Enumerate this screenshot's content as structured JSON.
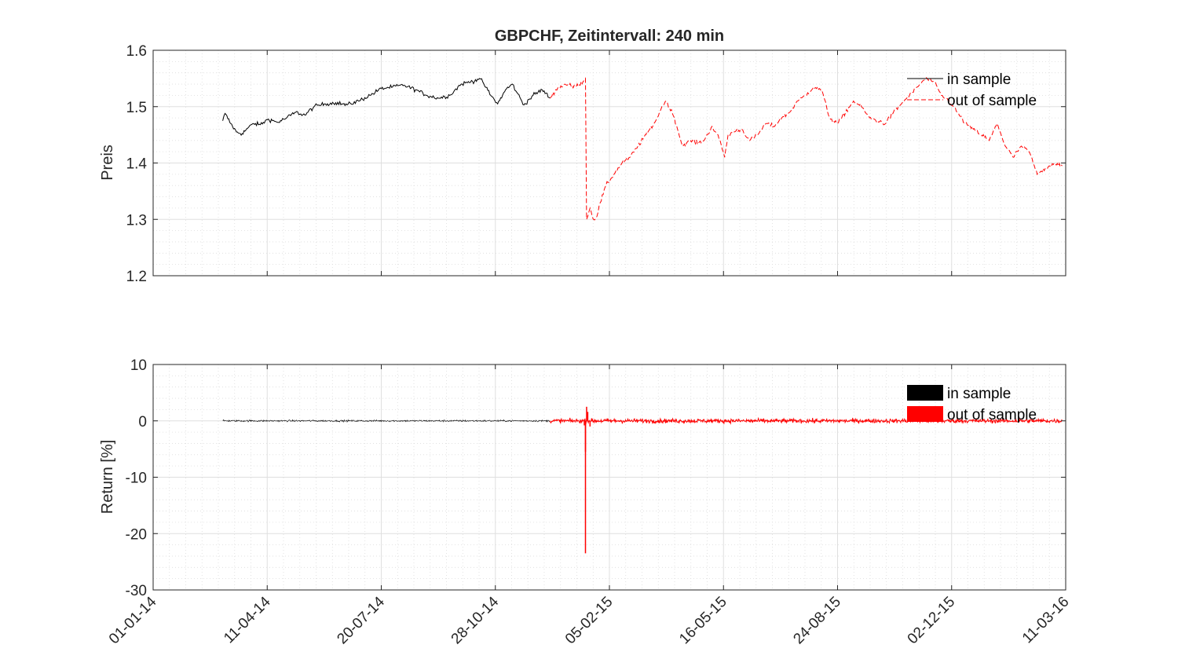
{
  "chart_data": [
    {
      "type": "line",
      "title": "GBPCHF, Zeitintervall: 240 min",
      "xlabel": "",
      "ylabel": "Preis",
      "xlim": [
        "01-01-14",
        "11-03-16"
      ],
      "ylim": [
        1.2,
        1.6
      ],
      "x_ticks": [
        "01-01-14",
        "11-04-14",
        "20-07-14",
        "28-10-14",
        "05-02-15",
        "16-05-15",
        "24-08-15",
        "02-12-15",
        "11-03-16"
      ],
      "y_ticks": [
        "1.2",
        "1.3",
        "1.4",
        "1.5",
        "1.6"
      ],
      "grid": true,
      "minor_grid": true,
      "legend_position": "top-right",
      "legend": [
        "in sample",
        "out of sample"
      ],
      "series": [
        {
          "name": "in sample",
          "color": "#000000",
          "line_style": "solid",
          "x": [
            "2014-03-03",
            "2014-03-05",
            "2014-03-10",
            "2014-03-15",
            "2014-03-20",
            "2014-03-25",
            "2014-03-30",
            "2014-04-05",
            "2014-04-12",
            "2014-04-20",
            "2014-04-28",
            "2014-05-06",
            "2014-05-14",
            "2014-05-22",
            "2014-06-01",
            "2014-06-10",
            "2014-06-20",
            "2014-06-30",
            "2014-07-10",
            "2014-07-20",
            "2014-07-30",
            "2014-08-09",
            "2014-08-19",
            "2014-08-29",
            "2014-09-08",
            "2014-09-18",
            "2014-09-28",
            "2014-10-08",
            "2014-10-14",
            "2014-10-18",
            "2014-10-24",
            "2014-10-30",
            "2014-11-06",
            "2014-11-12",
            "2014-11-16",
            "2014-11-22",
            "2014-11-30",
            "2014-12-08",
            "2014-12-15"
          ],
          "y": [
            1.475,
            1.488,
            1.47,
            1.455,
            1.452,
            1.462,
            1.47,
            1.468,
            1.478,
            1.472,
            1.48,
            1.49,
            1.485,
            1.5,
            1.505,
            1.507,
            1.503,
            1.51,
            1.52,
            1.532,
            1.535,
            1.538,
            1.53,
            1.52,
            1.515,
            1.52,
            1.54,
            1.545,
            1.55,
            1.54,
            1.52,
            1.505,
            1.53,
            1.54,
            1.525,
            1.503,
            1.52,
            1.53,
            1.515
          ]
        },
        {
          "name": "out of sample",
          "color": "#ff0000",
          "line_style": "dashed",
          "x": [
            "2014-12-15",
            "2014-12-20",
            "2014-12-28",
            "2015-01-06",
            "2015-01-13",
            "2015-01-15",
            "2015-01-16",
            "2015-01-19",
            "2015-01-22",
            "2015-01-25",
            "2015-01-28",
            "2015-02-02",
            "2015-02-09",
            "2015-02-16",
            "2015-02-23",
            "2015-03-02",
            "2015-03-09",
            "2015-03-16",
            "2015-03-19",
            "2015-03-23",
            "2015-03-27",
            "2015-04-03",
            "2015-04-10",
            "2015-04-17",
            "2015-04-24",
            "2015-04-29",
            "2015-05-06",
            "2015-05-13",
            "2015-05-17",
            "2015-05-20",
            "2015-05-25",
            "2015-06-01",
            "2015-06-08",
            "2015-06-15",
            "2015-06-22",
            "2015-06-29",
            "2015-07-06",
            "2015-07-13",
            "2015-07-20",
            "2015-07-27",
            "2015-08-03",
            "2015-08-10",
            "2015-08-17",
            "2015-08-24",
            "2015-08-31",
            "2015-09-07",
            "2015-09-14",
            "2015-09-21",
            "2015-09-28",
            "2015-10-05",
            "2015-10-12",
            "2015-10-19",
            "2015-10-26",
            "2015-11-02",
            "2015-11-09",
            "2015-11-16",
            "2015-11-23",
            "2015-11-30",
            "2015-12-07",
            "2015-12-14",
            "2015-12-21",
            "2015-12-28",
            "2016-01-04",
            "2016-01-11",
            "2016-01-18",
            "2016-01-25",
            "2016-02-01",
            "2016-02-08",
            "2016-02-15",
            "2016-02-22",
            "2016-03-01",
            "2016-03-08"
          ],
          "y": [
            1.515,
            1.53,
            1.54,
            1.535,
            1.545,
            1.55,
            1.3,
            1.32,
            1.3,
            1.305,
            1.33,
            1.36,
            1.38,
            1.4,
            1.41,
            1.43,
            1.45,
            1.47,
            1.48,
            1.5,
            1.51,
            1.48,
            1.43,
            1.44,
            1.435,
            1.44,
            1.465,
            1.44,
            1.41,
            1.45,
            1.455,
            1.46,
            1.44,
            1.45,
            1.47,
            1.465,
            1.48,
            1.49,
            1.51,
            1.52,
            1.535,
            1.53,
            1.48,
            1.47,
            1.49,
            1.51,
            1.5,
            1.48,
            1.475,
            1.47,
            1.49,
            1.505,
            1.52,
            1.535,
            1.55,
            1.545,
            1.52,
            1.51,
            1.49,
            1.47,
            1.46,
            1.45,
            1.44,
            1.47,
            1.43,
            1.41,
            1.43,
            1.42,
            1.38,
            1.39,
            1.4,
            1.395
          ]
        }
      ]
    },
    {
      "type": "line",
      "title": "",
      "xlabel": "",
      "ylabel": "Return [%]",
      "xlim": [
        "01-01-14",
        "11-03-16"
      ],
      "ylim": [
        -30,
        10
      ],
      "x_ticks": [
        "01-01-14",
        "11-04-14",
        "20-07-14",
        "28-10-14",
        "05-02-15",
        "16-05-15",
        "24-08-15",
        "02-12-15",
        "11-03-16"
      ],
      "y_ticks": [
        "10",
        "0",
        "-10",
        "-20",
        "-30"
      ],
      "grid": true,
      "minor_grid": true,
      "legend_position": "top-right",
      "legend": [
        "in sample",
        "out of sample"
      ],
      "series": [
        {
          "name": "in sample",
          "color": "#000000",
          "x_range": [
            "2014-03-03",
            "2014-12-15"
          ],
          "typical_abs_return": 0.15
        },
        {
          "name": "out of sample",
          "color": "#ff0000",
          "x_range": [
            "2014-12-15",
            "2016-03-08"
          ],
          "typical_abs_return": 0.35,
          "spikes": [
            {
              "x": "2015-01-14",
              "y": -0.8
            },
            {
              "x": "2015-01-15",
              "y": -23.5
            },
            {
              "x": "2015-01-15",
              "y": -5.5
            },
            {
              "x": "2015-01-16",
              "y": 2.5
            },
            {
              "x": "2015-01-17",
              "y": 1.6
            },
            {
              "x": "2015-01-19",
              "y": -1.0
            }
          ]
        }
      ]
    }
  ]
}
